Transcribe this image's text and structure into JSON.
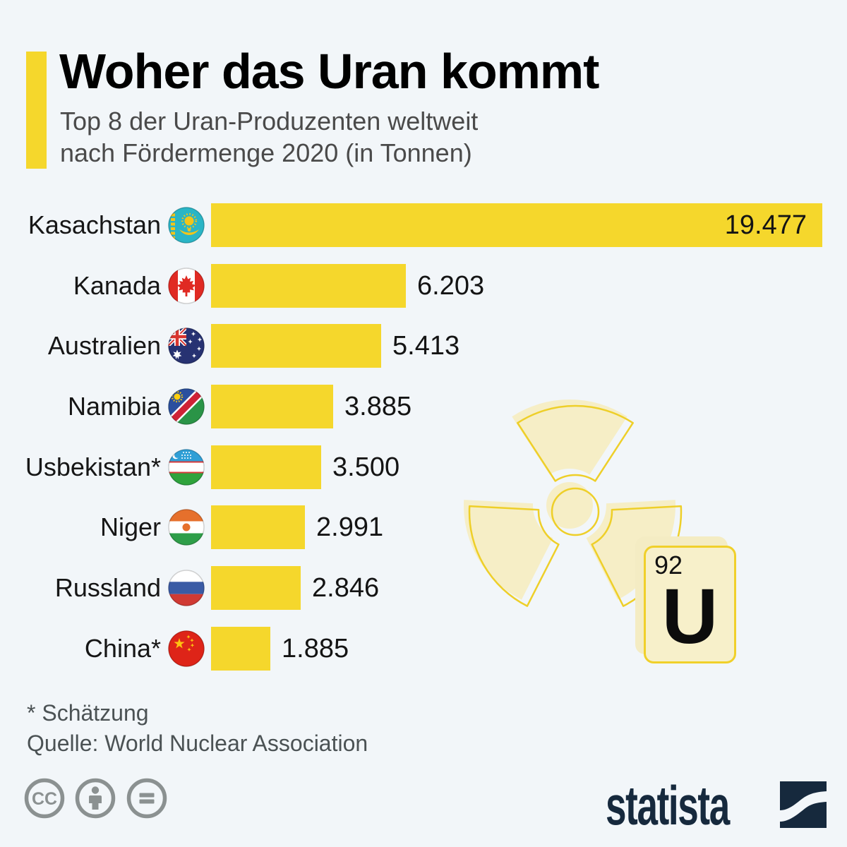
{
  "header": {
    "title": "Woher das Uran kommt",
    "subtitle_line1": "Top 8 der Uran-Produzenten weltweit",
    "subtitle_line2": "nach Fördermenge 2020 (in Tonnen)"
  },
  "chart_data": {
    "type": "bar",
    "orientation": "horizontal",
    "title": "Woher das Uran kommt",
    "subtitle": "Top 8 der Uran-Produzenten weltweit nach Fördermenge 2020 (in Tonnen)",
    "unit": "Tonnen",
    "categories": [
      "Kasachstan",
      "Kanada",
      "Australien",
      "Namibia",
      "Usbekistan*",
      "Niger",
      "Russland",
      "China*"
    ],
    "values": [
      19477,
      6203,
      5413,
      3885,
      3500,
      2991,
      2846,
      1885
    ],
    "value_labels": [
      "19.477",
      "6.203",
      "5.413",
      "3.885",
      "3.500",
      "2.991",
      "2.846",
      "1.885"
    ],
    "flags": [
      "kazakhstan-flag-icon",
      "canada-flag-icon",
      "australia-flag-icon",
      "namibia-flag-icon",
      "uzbekistan-flag-icon",
      "niger-flag-icon",
      "russia-flag-icon",
      "china-flag-icon"
    ],
    "xlim": [
      0,
      19477
    ],
    "grid": false,
    "legend": "none",
    "bar_color": "#f5d72c"
  },
  "decoration": {
    "radiation_icon": "radioactive-trefoil-icon",
    "element_number": "92",
    "element_symbol": "U"
  },
  "footer": {
    "footnote": "* Schätzung",
    "source": "Quelle: World Nuclear Association",
    "license_icons": [
      "cc-icon",
      "attribution-person-icon",
      "no-derivatives-equals-icon"
    ],
    "brand": "statista"
  },
  "colors": {
    "background": "#f2f6f9",
    "bar_yellow": "#f5d72c",
    "pale_yellow_fill": "#f6eec6",
    "yellow_outline": "#f0d02a",
    "subtitle_grey": "#4a4a4a",
    "footer_grey": "#4b5254",
    "license_grey": "#8b9191",
    "brand_navy": "#16293d"
  }
}
